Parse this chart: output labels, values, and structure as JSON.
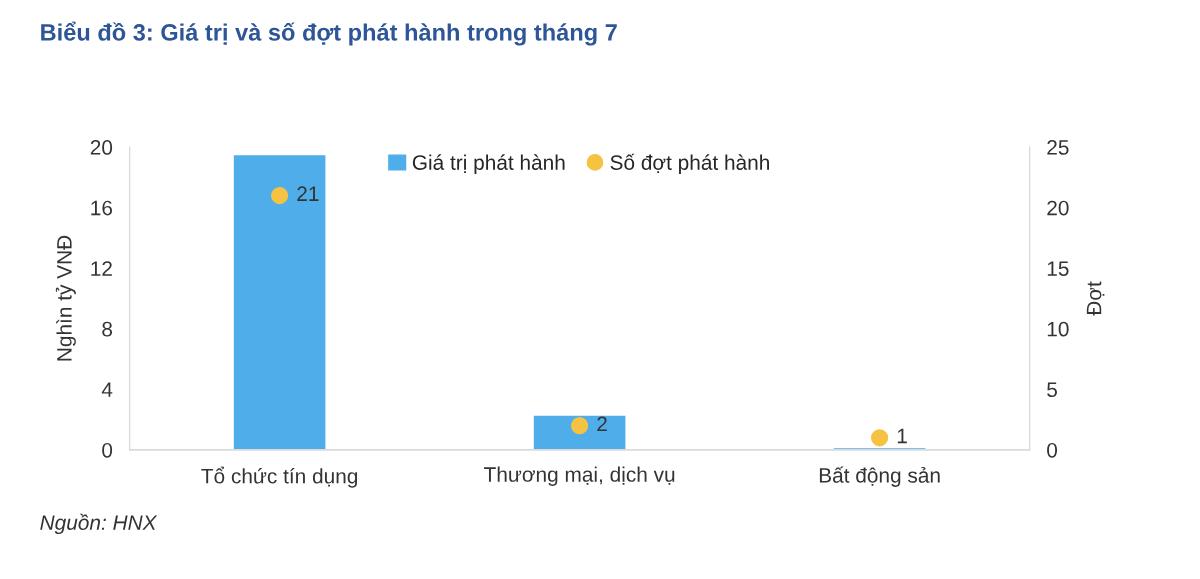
{
  "chart_data": {
    "type": "bar",
    "title": "Biểu đồ 3: Giá trị và số đợt phát hành trong tháng 7",
    "ylabel": "Nghìn tỷ VNĐ",
    "y2label": "Đợt",
    "categories": [
      "Tổ chức tín dụng",
      "Thương mại, dịch vụ",
      "Bất động sản"
    ],
    "series": [
      {
        "name": "Giá trị phát hành",
        "color": "#4fadea",
        "values": [
          19.5,
          2.3,
          0.15
        ]
      },
      {
        "name": "Số đợt phát hành",
        "type": "scatter",
        "axis": "y2",
        "color": "#f5c242",
        "values": [
          21,
          2,
          1
        ],
        "value_labels": [
          "21",
          "2",
          "1"
        ]
      }
    ],
    "ylim": [
      0,
      20
    ],
    "yticks": [
      0,
      4,
      8,
      12,
      16,
      20
    ],
    "y2lim": [
      0,
      25
    ],
    "y2ticks": [
      0,
      5,
      10,
      15,
      20,
      25
    ],
    "legend": "top",
    "marker": "circle",
    "grid": false,
    "annotations": [
      "Nguồn: HNX"
    ]
  }
}
